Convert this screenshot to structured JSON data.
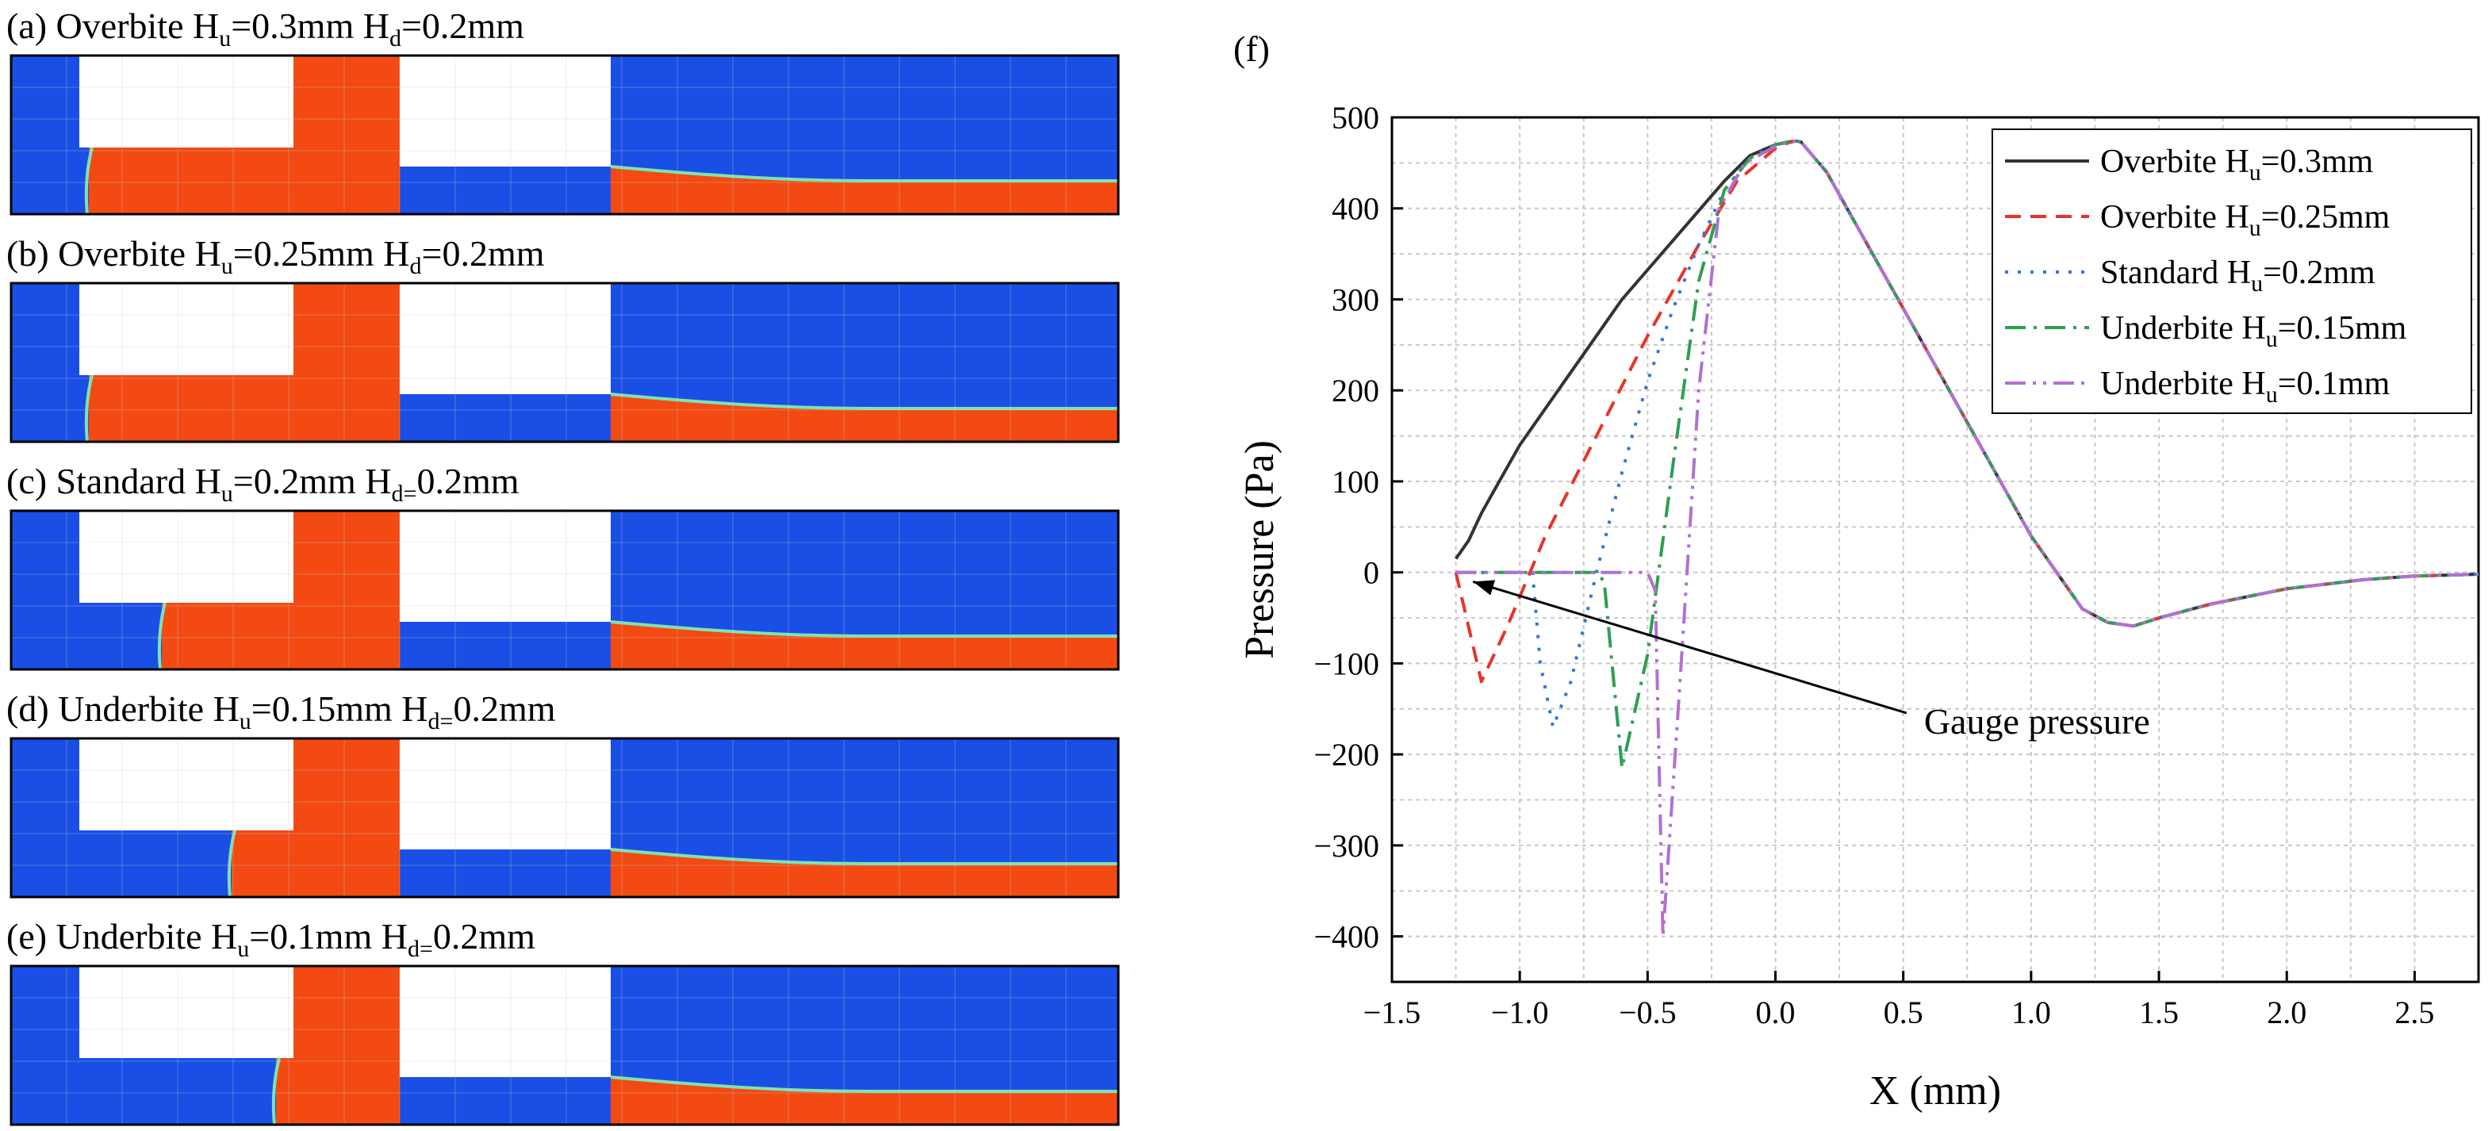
{
  "colors": {
    "air": "#1a4fe6",
    "water": "#f24a12",
    "interface": "#7fe3b0",
    "grid": "#c8c8c8",
    "line_black": "#333333",
    "line_red": "#e8332a",
    "line_blue": "#2f78d6",
    "line_green": "#2e9e53",
    "line_purple": "#b36fd4"
  },
  "panels": [
    {
      "id": "a",
      "prefix": "(a) Overbite H",
      "s1": "u",
      "mid": "=0.3mm H",
      "s2": "d",
      "suffix": "=0.2mm",
      "label_height": 25,
      "contact_position": 1.5,
      "crown_height": 76
    },
    {
      "id": "b",
      "prefix": "(b)  Overbite H",
      "s1": "u",
      "mid": "=0.25mm H",
      "s2": "d",
      "suffix": "=0.2mm",
      "label_height": 34,
      "contact_position": 1.5,
      "crown_height": 76
    },
    {
      "id": "c",
      "prefix": "(c) Standard  H",
      "s1": "u",
      "mid": "=0.2mm H",
      "s2": "d=",
      "suffix": "0.2mm",
      "label_height": 25,
      "contact_position": 13,
      "crown_height": 76
    },
    {
      "id": "d",
      "prefix": "(d) Underbite  H",
      "s1": "u",
      "mid": "=0.15mm H",
      "s2": "d=",
      "suffix": "0.2mm",
      "label_height": 17,
      "contact_position": 24,
      "crown_height": 76
    },
    {
      "id": "e",
      "prefix": "(e) Underbite  H",
      "s1": "u",
      "mid": "=0.1mm H",
      "s2": "d=",
      "suffix": "0.2mm",
      "label_height": 9,
      "contact_position": 31,
      "crown_height": 76
    }
  ],
  "chart_data": {
    "type": "line",
    "panel_label": "(f)",
    "xlabel": "X (mm)",
    "ylabel": "Pressure (Pa)",
    "xlim": [
      -1.5,
      2.75
    ],
    "ylim": [
      -450,
      500
    ],
    "xticks": [
      -1.5,
      -1.0,
      -0.5,
      0.0,
      0.5,
      1.0,
      1.5,
      2.0,
      2.5
    ],
    "xtick_labels": [
      "−1.5",
      "−1.0",
      "−0.5",
      "0.0",
      "0.5",
      "1.0",
      "1.5",
      "2.0",
      "2.5"
    ],
    "yticks": [
      500,
      400,
      300,
      200,
      100,
      0,
      -100,
      -200,
      -300,
      -400
    ],
    "ytick_labels": [
      "500",
      "400",
      "300",
      "200",
      "100",
      "0",
      "−100",
      "−200",
      "−300",
      "−400"
    ],
    "grid": true,
    "legend_position": "top-right",
    "annotation": {
      "text": "Gauge pressure",
      "x": 0.55,
      "y": -165,
      "arrow_to_x": -1.22,
      "arrow_to_y": -5
    },
    "series": [
      {
        "name": "Overbite",
        "sub": "u",
        "value": "=0.3mm",
        "color": "#333333",
        "dash": "none",
        "x": [
          -1.25,
          -1.2,
          -1.15,
          -1.1,
          -1.0,
          -0.8,
          -0.6,
          -0.4,
          -0.2,
          -0.1,
          0.0,
          0.05,
          0.08,
          0.1,
          0.2,
          0.4,
          0.6,
          0.8,
          1.0,
          1.2,
          1.3,
          1.4,
          1.5,
          1.7,
          2.0,
          2.3,
          2.5,
          2.75
        ],
        "y": [
          15,
          35,
          65,
          90,
          140,
          220,
          300,
          365,
          430,
          458,
          470,
          473,
          474,
          473,
          440,
          340,
          240,
          140,
          40,
          -40,
          -55,
          -59,
          -50,
          -35,
          -18,
          -8,
          -4,
          -2
        ]
      },
      {
        "name": "Overbite",
        "sub": "u",
        "value": "=0.25mm",
        "color": "#e8332a",
        "dash": "20,12",
        "x": [
          -1.25,
          -1.2,
          -1.15,
          -1.05,
          -0.9,
          -0.7,
          -0.5,
          -0.3,
          -0.15,
          0.0,
          0.05,
          0.08,
          0.1,
          0.2,
          0.4,
          0.6,
          0.8,
          1.0,
          1.2,
          1.3,
          1.4,
          1.5,
          1.7,
          2.0,
          2.3,
          2.5,
          2.75
        ],
        "y": [
          0,
          -60,
          -120,
          -60,
          40,
          150,
          260,
          360,
          430,
          466,
          472,
          474,
          473,
          440,
          340,
          240,
          140,
          40,
          -40,
          -55,
          -59,
          -50,
          -35,
          -18,
          -8,
          -4,
          -2
        ]
      },
      {
        "name": "Standard",
        "sub": "u",
        "value": "=0.2mm",
        "color": "#2f78d6",
        "dash": "4,12",
        "x": [
          -1.25,
          -1.1,
          -0.95,
          -0.92,
          -0.87,
          -0.8,
          -0.7,
          -0.6,
          -0.5,
          -0.4,
          -0.3,
          -0.2,
          -0.1,
          0.0,
          0.05,
          0.08,
          0.1,
          0.2,
          0.4,
          0.6,
          0.8,
          1.0,
          1.2,
          1.3,
          1.4,
          1.5,
          1.7,
          2.0,
          2.3,
          2.5,
          2.75
        ],
        "y": [
          0,
          0,
          0,
          -100,
          -170,
          -120,
          0,
          110,
          210,
          290,
          360,
          420,
          455,
          470,
          473,
          474,
          473,
          440,
          340,
          240,
          140,
          40,
          -40,
          -55,
          -59,
          -50,
          -35,
          -18,
          -8,
          -4,
          -2
        ]
      },
      {
        "name": "Underbite",
        "sub": "u",
        "value": "=0.15mm",
        "color": "#2e9e53",
        "dash": "26,10,4,10",
        "x": [
          -1.25,
          -0.9,
          -0.7,
          -0.67,
          -0.6,
          -0.5,
          -0.4,
          -0.3,
          -0.2,
          -0.1,
          0.0,
          0.05,
          0.08,
          0.1,
          0.2,
          0.4,
          0.6,
          0.8,
          1.0,
          1.2,
          1.3,
          1.4,
          1.5,
          1.7,
          2.0,
          2.3,
          2.5,
          2.75
        ],
        "y": [
          0,
          0,
          0,
          -10,
          -215,
          -90,
          120,
          320,
          420,
          455,
          470,
          473,
          474,
          473,
          440,
          340,
          240,
          140,
          40,
          -40,
          -55,
          -59,
          -50,
          -35,
          -18,
          -8,
          -4,
          -2
        ]
      },
      {
        "name": "Underbite",
        "sub": "u",
        "value": "=0.1mm",
        "color": "#b36fd4",
        "dash": "26,9,4,9,4,9",
        "x": [
          -1.25,
          -0.8,
          -0.5,
          -0.47,
          -0.44,
          -0.38,
          -0.3,
          -0.22,
          -0.12,
          0.0,
          0.05,
          0.08,
          0.1,
          0.2,
          0.4,
          0.6,
          0.8,
          1.0,
          1.2,
          1.3,
          1.4,
          1.5,
          1.7,
          2.0,
          2.3,
          2.5,
          2.75
        ],
        "y": [
          0,
          0,
          0,
          -20,
          -400,
          -150,
          200,
          400,
          450,
          468,
          473,
          474,
          473,
          440,
          340,
          240,
          140,
          40,
          -40,
          -55,
          -59,
          -50,
          -35,
          -18,
          -8,
          -4,
          -2
        ]
      }
    ]
  }
}
